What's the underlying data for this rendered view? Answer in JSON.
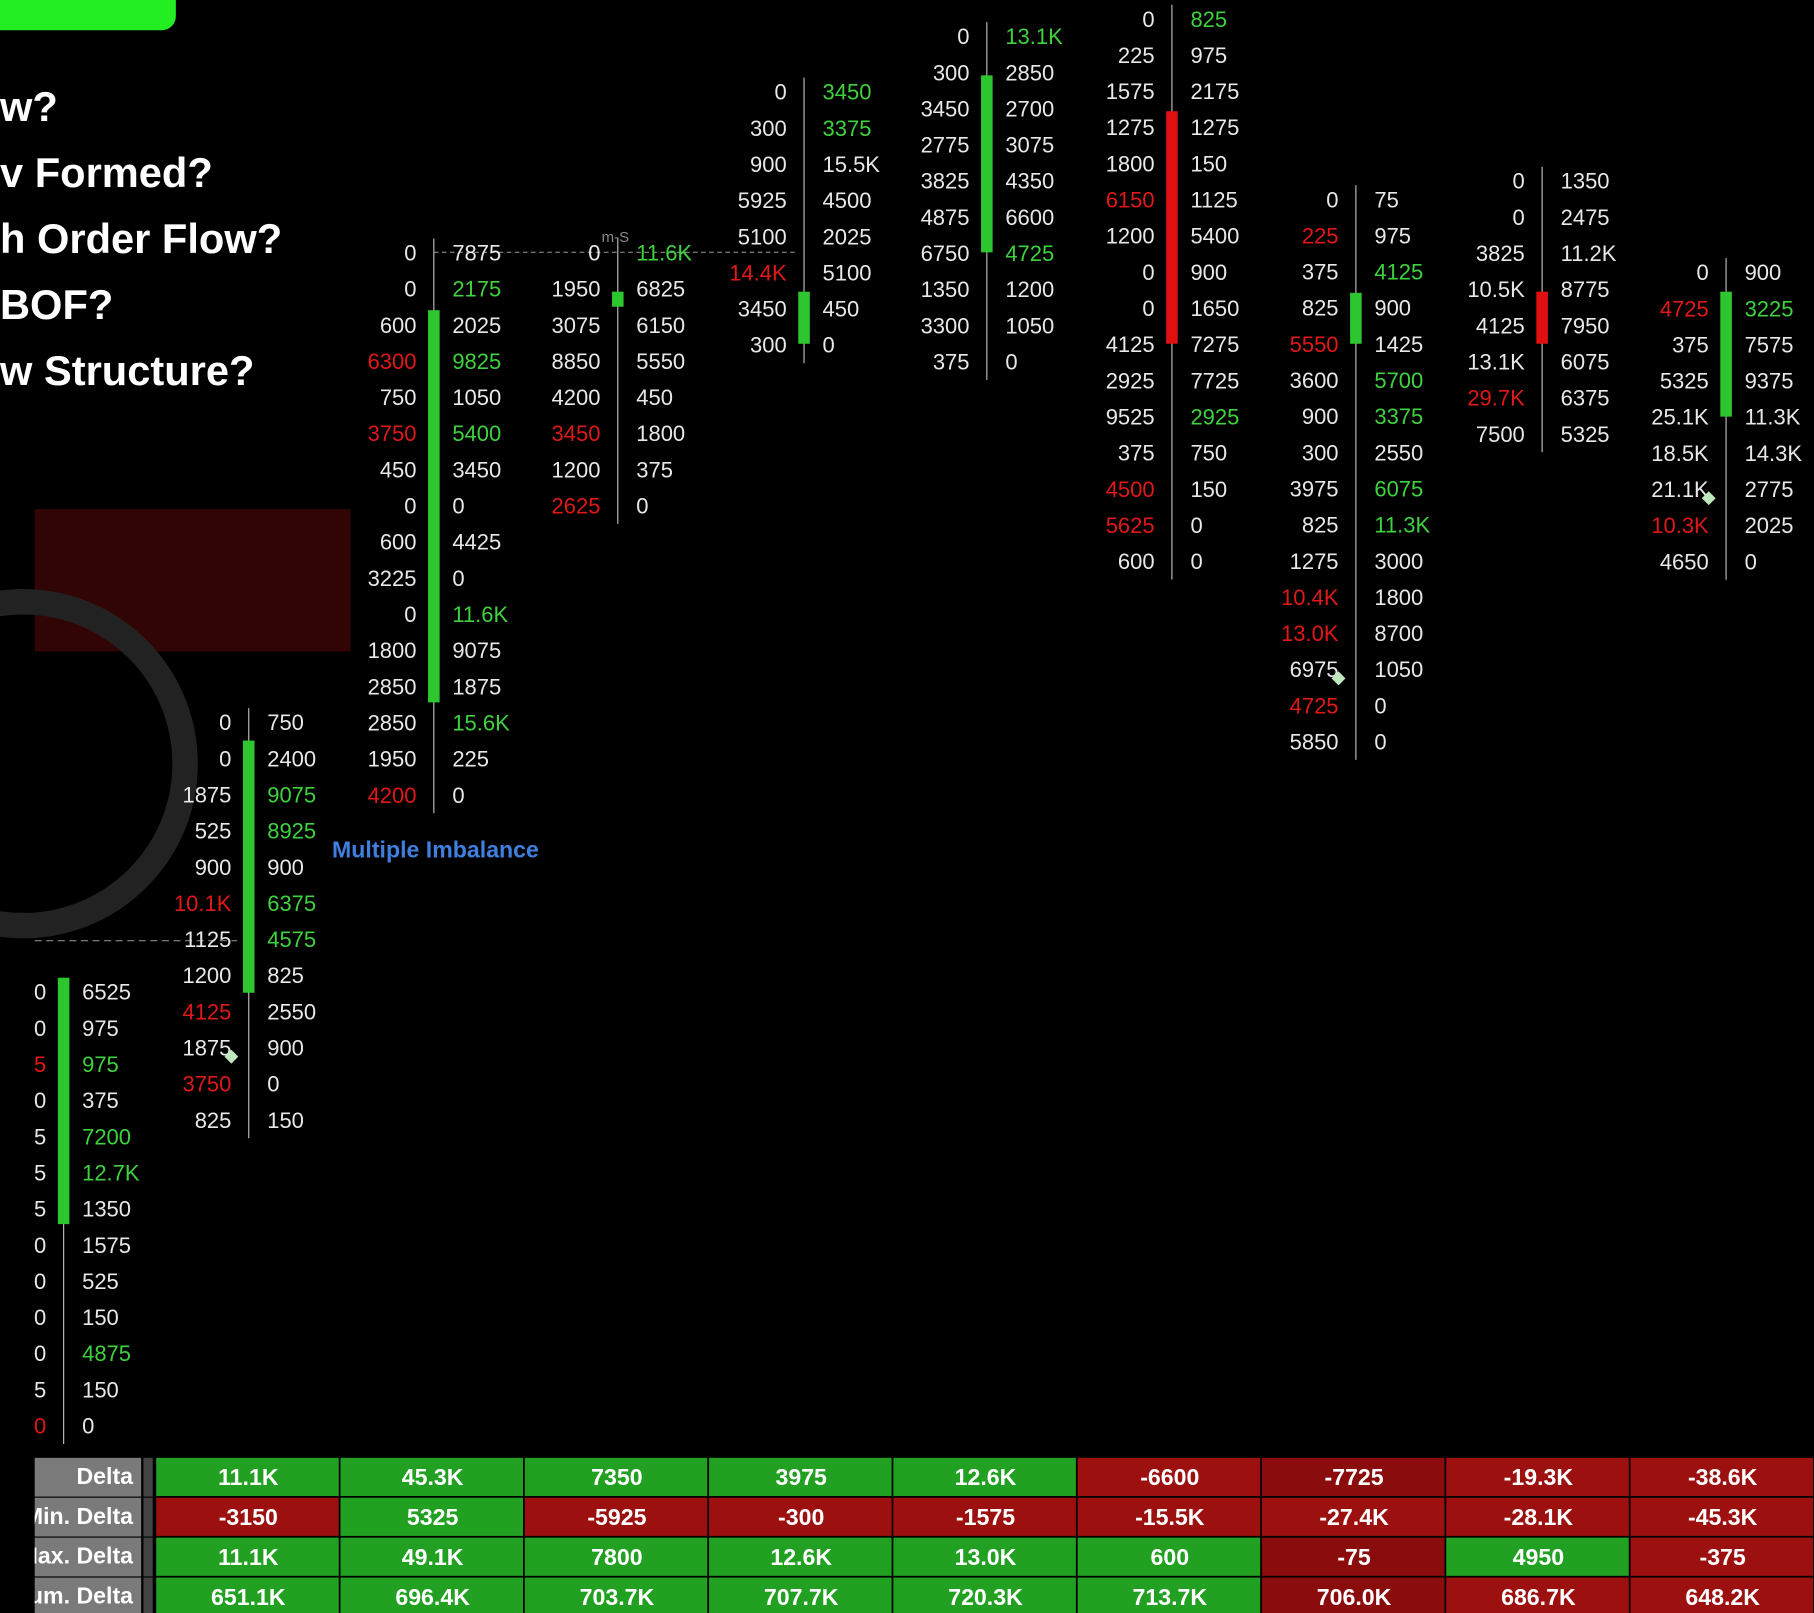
{
  "questions": [
    "w?",
    "v Formed?",
    "h Order Flow?",
    "BOF?",
    "w Structure?"
  ],
  "annotation": "Multiple Imbalance",
  "marker": "m-S",
  "columns": [
    {
      "candle": "green",
      "rows": [
        [
          "0",
          "6525"
        ],
        [
          "0",
          "975"
        ],
        [
          "5",
          "975"
        ],
        [
          "0",
          "375"
        ],
        [
          "5",
          "7200"
        ],
        [
          "5",
          "12.7K"
        ],
        [
          "5",
          "1350"
        ],
        [
          "0",
          "1575"
        ],
        [
          "0",
          "525"
        ],
        [
          "0",
          "150"
        ],
        [
          "0",
          "4875"
        ],
        [
          "5",
          "150"
        ],
        [
          "0",
          "0"
        ]
      ],
      "red_bids": [
        2,
        12
      ],
      "green_asks": [
        2,
        4,
        5,
        10
      ]
    },
    {
      "candle": "green",
      "rows": [
        [
          "0",
          "750"
        ],
        [
          "0",
          "2400"
        ],
        [
          "1875",
          "9075"
        ],
        [
          "525",
          "8925"
        ],
        [
          "900",
          "900"
        ],
        [
          "10.1K",
          "6375"
        ],
        [
          "1125",
          "4575"
        ],
        [
          "1200",
          "825"
        ],
        [
          "4125",
          "2550"
        ],
        [
          "1875",
          "900"
        ],
        [
          "3750",
          "0"
        ],
        [
          "825",
          "150"
        ]
      ],
      "red_bids": [
        5,
        8,
        10
      ],
      "green_asks": [
        2,
        3,
        5,
        6
      ]
    },
    {
      "candle": "green",
      "rows": [
        [
          "0",
          "7875"
        ],
        [
          "0",
          "2175"
        ],
        [
          "600",
          "2025"
        ],
        [
          "6300",
          "9825"
        ],
        [
          "750",
          "1050"
        ],
        [
          "3750",
          "5400"
        ],
        [
          "450",
          "3450"
        ],
        [
          "0",
          "0"
        ],
        [
          "600",
          "4425"
        ],
        [
          "3225",
          "0"
        ],
        [
          "0",
          "11.6K"
        ],
        [
          "1800",
          "9075"
        ],
        [
          "2850",
          "1875"
        ],
        [
          "2850",
          "15.6K"
        ],
        [
          "1950",
          "225"
        ],
        [
          "4200",
          "0"
        ]
      ],
      "red_bids": [
        3,
        5,
        15
      ],
      "green_asks": [
        1,
        3,
        5,
        10,
        13
      ]
    },
    {
      "candle": "green",
      "rows": [
        [
          "0",
          "11.6K"
        ],
        [
          "1950",
          "6825"
        ],
        [
          "3075",
          "6150"
        ],
        [
          "8850",
          "5550"
        ],
        [
          "4200",
          "450"
        ],
        [
          "3450",
          "1800"
        ],
        [
          "1200",
          "375"
        ],
        [
          "2625",
          "0"
        ]
      ],
      "red_bids": [
        5,
        7
      ],
      "green_asks": [
        0
      ]
    },
    {
      "candle": "green",
      "rows": [
        [
          "0",
          "3450"
        ],
        [
          "300",
          "3375"
        ],
        [
          "900",
          "15.5K"
        ],
        [
          "5925",
          "4500"
        ],
        [
          "5100",
          "2025"
        ],
        [
          "14.4K",
          "5100"
        ],
        [
          "3450",
          "450"
        ],
        [
          "300",
          "0"
        ]
      ],
      "red_bids": [
        5
      ],
      "green_asks": [
        0,
        1
      ]
    },
    {
      "candle": "green",
      "rows": [
        [
          "0",
          "13.1K"
        ],
        [
          "300",
          "2850"
        ],
        [
          "3450",
          "2700"
        ],
        [
          "2775",
          "3075"
        ],
        [
          "3825",
          "4350"
        ],
        [
          "4875",
          "6600"
        ],
        [
          "6750",
          "4725"
        ],
        [
          "1350",
          "1200"
        ],
        [
          "3300",
          "1050"
        ],
        [
          "375",
          "0"
        ]
      ],
      "red_bids": [],
      "green_asks": [
        0,
        6
      ]
    },
    {
      "candle": "red",
      "rows": [
        [
          "0",
          "825"
        ],
        [
          "225",
          "975"
        ],
        [
          "1575",
          "2175"
        ],
        [
          "1275",
          "1275"
        ],
        [
          "1800",
          "150"
        ],
        [
          "6150",
          "1125"
        ],
        [
          "1200",
          "5400"
        ],
        [
          "0",
          "900"
        ],
        [
          "0",
          "1650"
        ],
        [
          "4125",
          "7275"
        ],
        [
          "2925",
          "7725"
        ],
        [
          "9525",
          "2925"
        ],
        [
          "375",
          "750"
        ],
        [
          "4500",
          "150"
        ],
        [
          "5625",
          "0"
        ],
        [
          "600",
          "0"
        ]
      ],
      "red_bids": [
        5,
        13,
        14
      ],
      "green_asks": [
        0,
        11
      ]
    },
    {
      "candle": "green",
      "rows": [
        [
          "0",
          "75"
        ],
        [
          "225",
          "975"
        ],
        [
          "375",
          "4125"
        ],
        [
          "825",
          "900"
        ],
        [
          "5550",
          "1425"
        ],
        [
          "3600",
          "5700"
        ],
        [
          "900",
          "3375"
        ],
        [
          "300",
          "2550"
        ],
        [
          "3975",
          "6075"
        ],
        [
          "825",
          "11.3K"
        ],
        [
          "1275",
          "3000"
        ],
        [
          "10.4K",
          "1800"
        ],
        [
          "13.0K",
          "8700"
        ],
        [
          "6975",
          "1050"
        ],
        [
          "4725",
          "0"
        ],
        [
          "5850",
          "0"
        ]
      ],
      "red_bids": [
        1,
        4,
        11,
        12,
        14
      ],
      "green_asks": [
        2,
        5,
        6,
        8,
        9
      ]
    },
    {
      "candle": "red",
      "rows": [
        [
          "0",
          "1350"
        ],
        [
          "0",
          "2475"
        ],
        [
          "3825",
          "11.2K"
        ],
        [
          "10.5K",
          "8775"
        ],
        [
          "4125",
          "7950"
        ],
        [
          "13.1K",
          "6075"
        ],
        [
          "29.7K",
          "6375"
        ],
        [
          "7500",
          "5325"
        ]
      ],
      "red_bids": [
        6
      ],
      "green_asks": []
    },
    {
      "candle": "green",
      "rows": [
        [
          "0",
          "900"
        ],
        [
          "4725",
          "3225"
        ],
        [
          "375",
          "7575"
        ],
        [
          "5325",
          "9375"
        ],
        [
          "25.1K",
          "11.3K"
        ],
        [
          "18.5K",
          "14.3K"
        ],
        [
          "21.1K",
          "2775"
        ],
        [
          "10.3K",
          "2025"
        ],
        [
          "4650",
          "0"
        ]
      ],
      "red_bids": [
        1,
        7
      ],
      "green_asks": [
        1
      ]
    }
  ],
  "table": {
    "labels": [
      "Delta",
      "Min. Delta",
      "Max. Delta",
      "Cum. Delta"
    ],
    "rows": [
      [
        "11.1K",
        "45.3K",
        "7350",
        "3975",
        "12.6K",
        "-6600",
        "-7725",
        "-19.3K",
        "-38.6K"
      ],
      [
        "-3150",
        "5325",
        "-5925",
        "-300",
        "-1575",
        "-15.5K",
        "-27.4K",
        "-28.1K",
        "-45.3K"
      ],
      [
        "11.1K",
        "49.1K",
        "7800",
        "12.6K",
        "13.0K",
        "600",
        "-75",
        "4950",
        "-375"
      ],
      [
        "651.1K",
        "696.4K",
        "703.7K",
        "707.7K",
        "720.3K",
        "713.7K",
        "706.0K",
        "686.7K",
        "648.2K"
      ]
    ],
    "colors": [
      [
        "#22a022",
        "#22a022",
        "#22a022",
        "#22a022",
        "#22a022",
        "#9c1010",
        "#8a0c0c",
        "#9c1010",
        "#9c1010"
      ],
      [
        "#9c1010",
        "#22a022",
        "#9c1010",
        "#9c1010",
        "#9c1010",
        "#9c1010",
        "#9c1010",
        "#9c1010",
        "#9c1010"
      ],
      [
        "#22a022",
        "#22a022",
        "#22a022",
        "#22a022",
        "#22a022",
        "#22a022",
        "#8a0c0c",
        "#22a022",
        "#9c1010"
      ],
      [
        "#22a022",
        "#22a022",
        "#22a022",
        "#22a022",
        "#22a022",
        "#22a022",
        "#8a0c0c",
        "#9c1010",
        "#9c1010"
      ]
    ]
  }
}
